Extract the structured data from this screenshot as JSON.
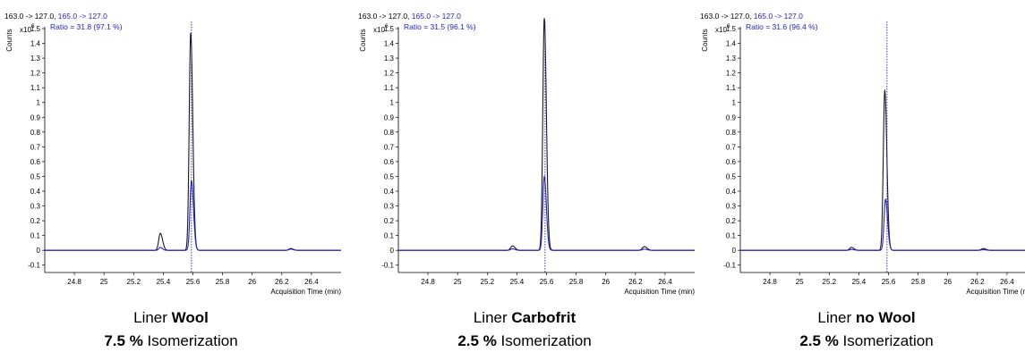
{
  "colors": {
    "series1": "#1a1a1a",
    "series2": "#2222cc",
    "axis": "#000000",
    "text_blue": "#2020cc"
  },
  "chart_data": [
    {
      "type": "line",
      "header_black": "163.0 -> 127.0,",
      "header_blue": "165.0 -> 127.0",
      "ratio_text": "Ratio = 31.8 (97.1 %)",
      "ylabel": "Counts",
      "scale_label": "x10",
      "scale_exp": "6",
      "xlabel": "Acquisition Time (min)",
      "xlim": [
        24.6,
        26.6
      ],
      "ylim": [
        -0.15,
        1.5
      ],
      "yticks": [
        "-0.1",
        "0",
        "0.1",
        "0.2",
        "0.3",
        "0.4",
        "0.5",
        "0.6",
        "0.7",
        "0.8",
        "0.9",
        "1",
        "1.1",
        "1.2",
        "1.3",
        "1.4",
        "1.5"
      ],
      "xticks": [
        "24.8",
        "25",
        "25.2",
        "25.4",
        "25.6",
        "25.8",
        "26",
        "26.2",
        "26.4"
      ],
      "marker_x": 25.59,
      "series": [
        {
          "peaks": [
            [
              25.38,
              0.115,
              0.011
            ],
            [
              25.585,
              1.47,
              0.01
            ],
            [
              26.26,
              0.012,
              0.012
            ]
          ]
        },
        {
          "peaks": [
            [
              25.38,
              0.02,
              0.01
            ],
            [
              25.59,
              0.47,
              0.01
            ],
            [
              26.26,
              0.008,
              0.012
            ]
          ]
        }
      ],
      "caption_prefix": "Liner ",
      "caption_bold": "Wool",
      "result_bold": "7.5 %",
      "result_text": " Isomerization"
    },
    {
      "type": "line",
      "header_black": "163.0 -> 127.0,",
      "header_blue": "165.0 -> 127.0",
      "ratio_text": "Ratio = 31.5 (96.1 %)",
      "ylabel": "Counts",
      "scale_label": "x10",
      "scale_exp": "6",
      "xlabel": "Acquisition Time (min)",
      "xlim": [
        24.6,
        26.6
      ],
      "ylim": [
        -0.15,
        1.5
      ],
      "yticks": [
        "-0.1",
        "0",
        "0.1",
        "0.2",
        "0.3",
        "0.4",
        "0.5",
        "0.6",
        "0.7",
        "0.8",
        "0.9",
        "1",
        "1.1",
        "1.2",
        "1.3",
        "1.4",
        "1.5"
      ],
      "xticks": [
        "24.8",
        "25",
        "25.2",
        "25.4",
        "25.6",
        "25.8",
        "26",
        "26.2",
        "26.4"
      ],
      "marker_x": 25.59,
      "series": [
        {
          "peaks": [
            [
              25.37,
              0.03,
              0.012
            ],
            [
              25.585,
              1.57,
              0.01
            ],
            [
              26.26,
              0.025,
              0.013
            ]
          ]
        },
        {
          "peaks": [
            [
              25.37,
              0.01,
              0.012
            ],
            [
              25.585,
              0.5,
              0.01
            ],
            [
              26.26,
              0.008,
              0.013
            ]
          ]
        }
      ],
      "caption_prefix": "Liner ",
      "caption_bold": "Carbofrit",
      "result_bold": "2.5 %",
      "result_text": " Isomerization"
    },
    {
      "type": "line",
      "header_black": "163.0 -> 127.0,",
      "header_blue": "165.0 -> 127.0",
      "ratio_text": "Ratio = 31.6 (96.4 %)",
      "ylabel": "Counts",
      "scale_label": "x10",
      "scale_exp": "6",
      "xlabel": "Acquisition Time (min)",
      "xlim": [
        24.6,
        26.6
      ],
      "ylim": [
        -0.15,
        1.5
      ],
      "yticks": [
        "-0.1",
        "0",
        "0.1",
        "0.2",
        "0.3",
        "0.4",
        "0.5",
        "0.6",
        "0.7",
        "0.8",
        "0.9",
        "1",
        "1.1",
        "1.2",
        "1.3",
        "1.4",
        "1.5"
      ],
      "xticks": [
        "24.8",
        "25",
        "25.2",
        "25.4",
        "25.6",
        "25.8",
        "26",
        "26.2",
        "26.4"
      ],
      "marker_x": 25.59,
      "series": [
        {
          "peaks": [
            [
              25.35,
              0.02,
              0.012
            ],
            [
              25.575,
              1.08,
              0.01
            ],
            [
              26.24,
              0.012,
              0.013
            ]
          ]
        },
        {
          "peaks": [
            [
              25.35,
              0.006,
              0.012
            ],
            [
              25.58,
              0.345,
              0.01
            ],
            [
              26.24,
              0.004,
              0.013
            ]
          ]
        }
      ],
      "caption_prefix": "Liner ",
      "caption_bold": "no Wool",
      "result_bold": "2.5 %",
      "result_text": " Isomerization"
    }
  ]
}
